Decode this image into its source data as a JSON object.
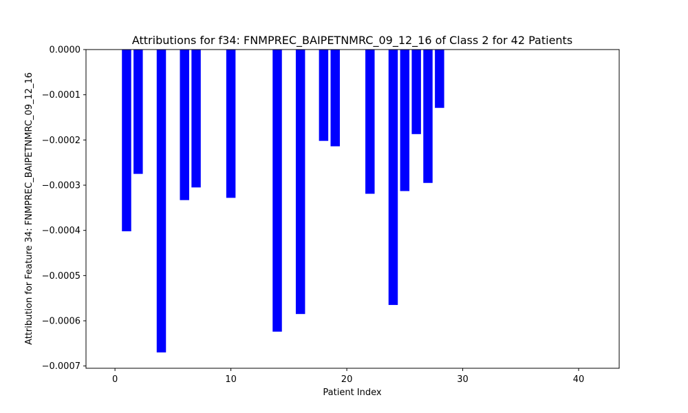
{
  "chart_data": {
    "type": "bar",
    "title": "Attributions for f34: FNMPREC_BAIPETNMRC_09_12_16 of Class 2 for 42 Patients",
    "xlabel": "Patient Index",
    "ylabel": "Attribution for Feature 34: FNMPREC_BAIPETNMRC_09_12_16",
    "xlim": [
      -2.5,
      43.5
    ],
    "ylim": [
      -0.000705,
      0
    ],
    "x_ticks": [
      0,
      10,
      20,
      30,
      40
    ],
    "y_ticks": [
      0,
      -0.0001,
      -0.0002,
      -0.0003,
      -0.0004,
      -0.0005,
      -0.0006,
      -0.0007
    ],
    "x_tick_labels": [
      "0",
      "10",
      "20",
      "30",
      "40"
    ],
    "y_tick_labels": [
      "0.0000",
      "−0.0001",
      "−0.0002",
      "−0.0003",
      "−0.0004",
      "−0.0005",
      "−0.0006",
      "−0.0007"
    ],
    "bar_color": "#0000ff",
    "bar_width": 0.8,
    "grid": false,
    "x": [
      1,
      2,
      4,
      6,
      7,
      10,
      14,
      16,
      18,
      19,
      22,
      24,
      25,
      26,
      27,
      28
    ],
    "values": [
      -0.000402,
      -0.000275,
      -0.00067,
      -0.000333,
      -0.000305,
      -0.000328,
      -0.000624,
      -0.000585,
      -0.000202,
      -0.000214,
      -0.000319,
      -0.000565,
      -0.000313,
      -0.000187,
      -0.000295,
      -0.000129
    ]
  }
}
